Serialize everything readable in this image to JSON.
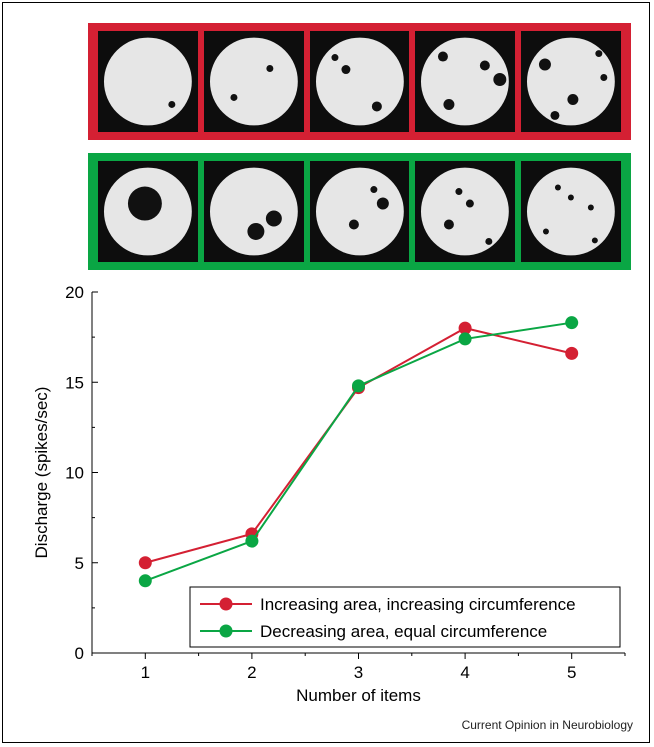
{
  "strips": {
    "top_color": "#d42033",
    "bottom_color": "#0aa644",
    "disc_color": "#e6e6e6",
    "dot_color": "#111111",
    "top_dot_counts": [
      1,
      2,
      3,
      4,
      5
    ],
    "bottom_dot_counts": [
      1,
      2,
      3,
      4,
      5
    ]
  },
  "credit": "Current Opinion in Neurobiology",
  "chart_data": {
    "type": "line",
    "title": "",
    "xlabel": "Number of items",
    "ylabel": "Discharge (spikes/sec)",
    "x": [
      1,
      2,
      3,
      4,
      5
    ],
    "xlim": [
      0.5,
      5.5
    ],
    "ylim": [
      0,
      20
    ],
    "xticks": [
      "1",
      "2",
      "3",
      "4",
      "5"
    ],
    "yticks": [
      "0",
      "5",
      "10",
      "15",
      "20"
    ],
    "grid": false,
    "legend": "bottom-right",
    "series": [
      {
        "name": "Increasing area, increasing circumference",
        "color": "#d42033",
        "values": [
          5.0,
          6.6,
          14.7,
          18.0,
          16.6
        ]
      },
      {
        "name": "Decreasing area, equal circumference",
        "color": "#0aa644",
        "values": [
          4.0,
          6.2,
          14.8,
          17.4,
          18.3
        ]
      }
    ]
  }
}
